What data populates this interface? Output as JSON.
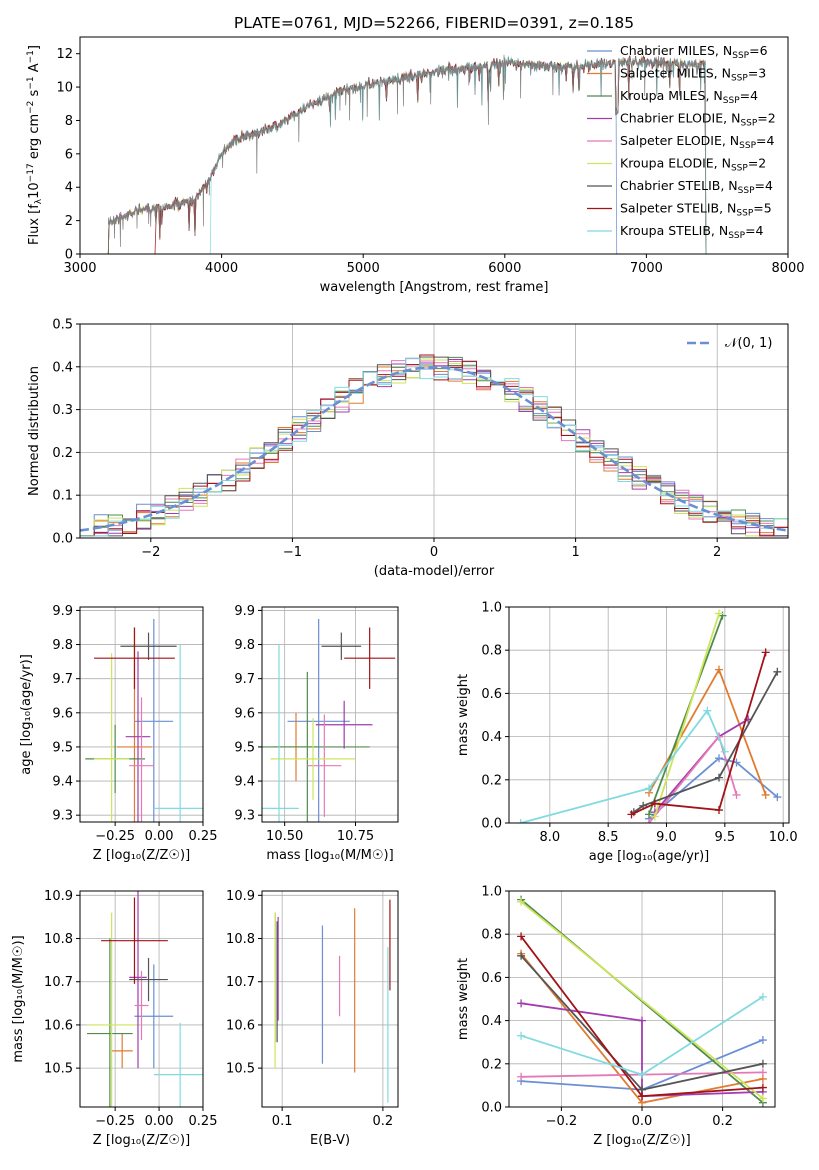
{
  "colors": {
    "s0": "#6a8fd4",
    "s1": "#e07b2f",
    "s2": "#4f8c4f",
    "s3": "#a23caf",
    "s4": "#e579b7",
    "s5": "#cde55a",
    "s6": "#555555",
    "s7": "#a01317",
    "s8": "#7fdbe0",
    "grid": "#b0b0b0",
    "spectrum": "#808080"
  },
  "chart_data": [
    {
      "id": "spectrum",
      "type": "line",
      "title": "PLATE=0761, MJD=52266, FIBERID=0391, z=0.185",
      "xlabel": "wavelength [Angstrom, rest frame]",
      "ylabel_parts": [
        "Flux [f",
        "λ",
        "10",
        "−17",
        " erg cm",
        "−2",
        " s",
        "−1",
        " A",
        "−1",
        "]"
      ],
      "xlim": [
        3000,
        8000
      ],
      "ylim": [
        0,
        13
      ],
      "xticks": [
        3000,
        4000,
        5000,
        6000,
        7000,
        8000
      ],
      "yticks": [
        0,
        2,
        4,
        6,
        8,
        10,
        12
      ],
      "grid": false,
      "legend_position": "top-right",
      "continuum": [
        [
          3200,
          1.9
        ],
        [
          3400,
          2.6
        ],
        [
          3500,
          2.7
        ],
        [
          3650,
          2.9
        ],
        [
          3800,
          3.2
        ],
        [
          3900,
          4.3
        ],
        [
          4000,
          6.0
        ],
        [
          4100,
          6.9
        ],
        [
          4200,
          7.1
        ],
        [
          4400,
          7.7
        ],
        [
          4600,
          8.8
        ],
        [
          4800,
          9.6
        ],
        [
          5000,
          10.1
        ],
        [
          5200,
          10.4
        ],
        [
          5500,
          10.9
        ],
        [
          5800,
          11.2
        ],
        [
          6000,
          11.5
        ],
        [
          6200,
          11.3
        ],
        [
          6500,
          11.2
        ],
        [
          6800,
          11.5
        ],
        [
          7000,
          11.5
        ],
        [
          7200,
          11.4
        ],
        [
          7400,
          11.3
        ]
      ],
      "start_breaks": [
        3200,
        3200,
        3200,
        3200,
        3200,
        3200,
        3200,
        3530,
        3920
      ],
      "end_breaks": [
        6790,
        7420,
        7420,
        7420,
        7420,
        7420,
        7420,
        7420,
        7420
      ],
      "legend": [
        {
          "label": "Chabrier MILES, N",
          "sub": "SSP",
          "tail": "=6"
        },
        {
          "label": "Salpeter MILES, N",
          "sub": "SSP",
          "tail": "=3"
        },
        {
          "label": "Kroupa MILES, N",
          "sub": "SSP",
          "tail": "=4"
        },
        {
          "label": "Chabrier ELODIE, N",
          "sub": "SSP",
          "tail": "=2"
        },
        {
          "label": "Salpeter ELODIE, N",
          "sub": "SSP",
          "tail": "=4"
        },
        {
          "label": "Kroupa ELODIE, N",
          "sub": "SSP",
          "tail": "=2"
        },
        {
          "label": "Chabrier STELIB, N",
          "sub": "SSP",
          "tail": "=4"
        },
        {
          "label": "Salpeter STELIB, N",
          "sub": "SSP",
          "tail": "=5"
        },
        {
          "label": "Kroupa STELIB, N",
          "sub": "SSP",
          "tail": "=4"
        }
      ]
    },
    {
      "id": "residuals",
      "type": "line",
      "xlabel": "(data-model)/error",
      "ylabel": "Normed distribution",
      "xlim": [
        -2.5,
        2.5
      ],
      "ylim": [
        0,
        0.5
      ],
      "xticks": [
        -2,
        -1,
        0,
        1,
        2
      ],
      "xtick_labels": [
        "−2",
        "−1",
        "0",
        "1",
        "2"
      ],
      "yticks": [
        0.0,
        0.1,
        0.2,
        0.3,
        0.4,
        0.5
      ],
      "ytick_labels": [
        "0.0",
        "0.1",
        "0.2",
        "0.3",
        "0.4",
        "0.5"
      ],
      "grid": true,
      "bin_width": 0.1,
      "legend_position": "top-right",
      "legend": "𝒩(0, 1)"
    },
    {
      "id": "age_vs_Z",
      "type": "scatter",
      "xlabel": "Z [log₁₀(Z/Z☉)]",
      "ylabel": "age  [log₁₀(age/yr)]",
      "xlim": [
        -0.45,
        0.25
      ],
      "ylim": [
        9.28,
        9.91
      ],
      "xticks": [
        -0.25,
        0.0,
        0.25
      ],
      "xtick_labels": [
        "−0.25",
        "0.00",
        "0.25"
      ],
      "yticks": [
        9.3,
        9.4,
        9.5,
        9.6,
        9.7,
        9.8,
        9.9
      ],
      "ytick_labels": [
        "9.3",
        "9.4",
        "9.5",
        "9.6",
        "9.7",
        "9.8",
        "9.9"
      ],
      "grid": true,
      "points": [
        {
          "x": -0.03,
          "y": 9.575,
          "xerr": 0.11,
          "yerr": 0.3
        },
        {
          "x": -0.14,
          "y": 9.5,
          "xerr": 0.1,
          "yerr": 0.35
        },
        {
          "x": -0.25,
          "y": 9.465,
          "xerr": 0.17,
          "yerr": 0.1
        },
        {
          "x": -0.12,
          "y": 9.53,
          "xerr": 0.07,
          "yerr": 0.25
        },
        {
          "x": -0.1,
          "y": 9.445,
          "xerr": 0.07,
          "yerr": 0.2
        },
        {
          "x": -0.27,
          "y": 9.465,
          "xerr": 0.1,
          "yerr": 0.31
        },
        {
          "x": -0.06,
          "y": 9.795,
          "xerr": 0.16,
          "yerr": 0.04
        },
        {
          "x": -0.14,
          "y": 9.76,
          "xerr": 0.23,
          "yerr": 0.09
        },
        {
          "x": 0.12,
          "y": 9.32,
          "xerr": 0.15,
          "yerr": 0.48
        }
      ]
    },
    {
      "id": "age_vs_mass",
      "type": "scatter",
      "xlabel": "mass [log₁₀(M/M☉)]",
      "ylabel": "",
      "xlim": [
        10.42,
        10.9
      ],
      "ylim": [
        9.28,
        9.91
      ],
      "xticks": [
        10.5,
        10.75
      ],
      "xtick_labels": [
        "10.50",
        "10.75"
      ],
      "yticks": [
        9.3,
        9.4,
        9.5,
        9.6,
        9.7,
        9.8,
        9.9
      ],
      "ytick_labels": [
        "9.3",
        "9.4",
        "9.5",
        "9.6",
        "9.7",
        "9.8",
        "9.9"
      ],
      "grid": true,
      "points": [
        {
          "x": 10.62,
          "y": 9.575,
          "xerr": 0.11,
          "yerr": 0.3
        },
        {
          "x": 10.54,
          "y": 9.5,
          "xerr": 0.08,
          "yerr": 0.1
        },
        {
          "x": 10.58,
          "y": 9.5,
          "xerr": 0.22,
          "yerr": 0.22
        },
        {
          "x": 10.71,
          "y": 9.565,
          "xerr": 0.1,
          "yerr": 0.07
        },
        {
          "x": 10.64,
          "y": 9.445,
          "xerr": 0.06,
          "yerr": 0.15
        },
        {
          "x": 10.6,
          "y": 9.465,
          "xerr": 0.15,
          "yerr": 0.12
        },
        {
          "x": 10.7,
          "y": 9.795,
          "xerr": 0.07,
          "yerr": 0.04
        },
        {
          "x": 10.8,
          "y": 9.76,
          "xerr": 0.09,
          "yerr": 0.09
        },
        {
          "x": 10.48,
          "y": 9.32,
          "xerr": 0.07,
          "yerr": 0.48
        }
      ]
    },
    {
      "id": "mass_weight_vs_age",
      "type": "line",
      "xlabel": "age  [log₁₀(age/yr)]",
      "ylabel": "mass weight",
      "xlim": [
        7.65,
        10.05
      ],
      "ylim": [
        0,
        1
      ],
      "xticks": [
        8.0,
        8.5,
        9.0,
        9.5,
        10.0
      ],
      "xtick_labels": [
        "8.0",
        "8.5",
        "9.0",
        "9.5",
        "10.0"
      ],
      "yticks": [
        0,
        0.2,
        0.4,
        0.6,
        0.8,
        1.0
      ],
      "ytick_labels": [
        "0.0",
        "0.2",
        "0.4",
        "0.6",
        "0.8",
        "1.0"
      ],
      "grid": true,
      "series": [
        {
          "x": [
            8.85,
            9.45,
            9.6,
            9.95
          ],
          "y": [
            0.02,
            0.3,
            0.28,
            0.12
          ]
        },
        {
          "x": [
            8.85,
            9.45,
            9.85
          ],
          "y": [
            0.14,
            0.71,
            0.13
          ]
        },
        {
          "x": [
            8.85,
            9.48
          ],
          "y": [
            0.04,
            0.96
          ]
        },
        {
          "x": [
            8.9,
            9.45,
            9.7
          ],
          "y": [
            0.05,
            0.4,
            0.48
          ]
        },
        {
          "x": [
            8.85,
            9.45,
            9.6
          ],
          "y": [
            0.0,
            0.4,
            0.13
          ]
        },
        {
          "x": [
            8.9,
            9.45
          ],
          "y": [
            0.03,
            0.97
          ]
        },
        {
          "x": [
            8.72,
            8.8,
            9.45,
            9.95
          ],
          "y": [
            0.05,
            0.08,
            0.21,
            0.7
          ]
        },
        {
          "x": [
            8.7,
            8.9,
            9.45,
            9.85
          ],
          "y": [
            0.04,
            0.09,
            0.06,
            0.79
          ]
        },
        {
          "x": [
            7.75,
            8.85,
            9.35,
            9.5
          ],
          "y": [
            0.0,
            0.16,
            0.52,
            0.33
          ]
        }
      ]
    },
    {
      "id": "mass_vs_Z",
      "type": "scatter",
      "xlabel": "Z [log₁₀(Z/Z☉)]",
      "ylabel": "mass [log₁₀(M/M☉)]",
      "xlim": [
        -0.45,
        0.25
      ],
      "ylim": [
        10.41,
        10.91
      ],
      "xticks": [
        -0.25,
        0.0,
        0.25
      ],
      "xtick_labels": [
        "−0.25",
        "0.00",
        "0.25"
      ],
      "yticks": [
        10.5,
        10.6,
        10.7,
        10.8,
        10.9
      ],
      "ytick_labels": [
        "10.5",
        "10.6",
        "10.7",
        "10.8",
        "10.9"
      ],
      "grid": true,
      "points": [
        {
          "x": -0.03,
          "y": 10.62,
          "xerr": 0.11,
          "yerr": 0.12
        },
        {
          "x": -0.21,
          "y": 10.54,
          "xerr": 0.06,
          "yerr": 0.04
        },
        {
          "x": -0.28,
          "y": 10.58,
          "xerr": 0.13,
          "yerr": 0.22
        },
        {
          "x": -0.12,
          "y": 10.71,
          "xerr": 0.05,
          "yerr": 0.21
        },
        {
          "x": -0.1,
          "y": 10.645,
          "xerr": 0.04,
          "yerr": 0.08
        },
        {
          "x": -0.27,
          "y": 10.6,
          "xerr": 0.14,
          "yerr": 0.26
        },
        {
          "x": -0.06,
          "y": 10.705,
          "xerr": 0.11,
          "yerr": 0.05
        },
        {
          "x": -0.14,
          "y": 10.795,
          "xerr": 0.19,
          "yerr": 0.1
        },
        {
          "x": 0.12,
          "y": 10.485,
          "xerr": 0.15,
          "yerr": 0.12
        }
      ]
    },
    {
      "id": "mass_vs_ebv",
      "type": "scatter",
      "xlabel": "E(B-V)",
      "ylabel": "",
      "xlim": [
        0.08,
        0.215
      ],
      "ylim": [
        10.41,
        10.91
      ],
      "xticks": [
        0.1,
        0.2
      ],
      "xtick_labels": [
        "0.1",
        "0.2"
      ],
      "yticks": [
        10.5,
        10.6,
        10.7,
        10.8,
        10.9
      ],
      "ytick_labels": [
        "10.5",
        "10.6",
        "10.7",
        "10.8",
        "10.9"
      ],
      "grid": true,
      "points": [
        {
          "x": 0.14,
          "y": 10.67,
          "yerr": 0.16
        },
        {
          "x": 0.172,
          "y": 10.68,
          "yerr": 0.19
        },
        {
          "x": 0.093,
          "y": 10.71,
          "yerr": 0.15
        },
        {
          "x": 0.096,
          "y": 10.73,
          "yerr": 0.12
        },
        {
          "x": 0.157,
          "y": 10.69,
          "yerr": 0.07
        },
        {
          "x": 0.093,
          "y": 10.68,
          "yerr": 0.18
        },
        {
          "x": 0.095,
          "y": 10.7,
          "yerr": 0.14
        },
        {
          "x": 0.207,
          "y": 10.785,
          "yerr": 0.105
        },
        {
          "x": 0.205,
          "y": 10.6,
          "yerr": 0.18
        }
      ]
    },
    {
      "id": "mass_weight_vs_Z",
      "type": "line",
      "xlabel": "Z [log₁₀(Z/Z☉)]",
      "ylabel": "mass weight",
      "xlim": [
        -0.33,
        0.33
      ],
      "ylim": [
        0,
        1
      ],
      "xticks": [
        -0.2,
        0.0,
        0.2
      ],
      "xtick_labels": [
        "−0.2",
        "0.0",
        "0.2"
      ],
      "yticks": [
        0,
        0.2,
        0.4,
        0.6,
        0.8,
        1.0
      ],
      "ytick_labels": [
        "0.0",
        "0.2",
        "0.4",
        "0.6",
        "0.8",
        "1.0"
      ],
      "grid": true,
      "series": [
        {
          "x": [
            -0.3,
            0.0,
            0.3
          ],
          "y": [
            0.12,
            0.08,
            0.31
          ]
        },
        {
          "x": [
            -0.3,
            0.0,
            0.3
          ],
          "y": [
            0.71,
            0.02,
            0.13
          ]
        },
        {
          "x": [
            -0.3,
            0.3
          ],
          "y": [
            0.96,
            0.02
          ]
        },
        {
          "x": [
            -0.3,
            0.0,
            0.0,
            0.3
          ],
          "y": [
            0.48,
            0.4,
            0.05,
            0.07
          ]
        },
        {
          "x": [
            -0.3,
            0.0,
            0.3
          ],
          "y": [
            0.14,
            0.15,
            0.16
          ]
        },
        {
          "x": [
            -0.3,
            0.3
          ],
          "y": [
            0.95,
            0.04
          ]
        },
        {
          "x": [
            -0.3,
            0.0,
            0.3
          ],
          "y": [
            0.7,
            0.08,
            0.2
          ]
        },
        {
          "x": [
            -0.3,
            0.0,
            0.3
          ],
          "y": [
            0.79,
            0.05,
            0.09
          ]
        },
        {
          "x": [
            -0.3,
            0.0,
            0.3
          ],
          "y": [
            0.33,
            0.15,
            0.51
          ]
        }
      ]
    }
  ]
}
